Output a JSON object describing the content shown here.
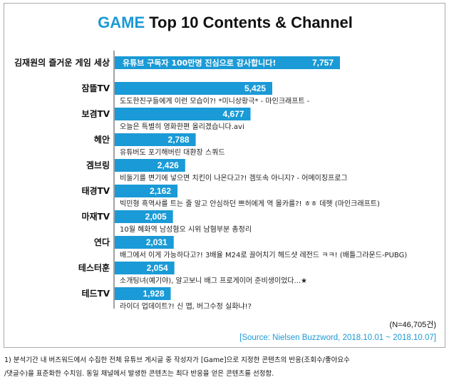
{
  "title": {
    "highlight": "GAME",
    "rest": " Top 10 Contents & Channel"
  },
  "colors": {
    "bar": "#1a9ad6",
    "accent": "#1a9ad6",
    "axis": "#444444"
  },
  "chart_data": {
    "type": "bar",
    "orientation": "horizontal",
    "categories": [
      "김재원의 즐거운 게임 세상",
      "잠뜰TV",
      "보겸TV",
      "헤안",
      "겜브링",
      "태경TV",
      "마재TV",
      "연다",
      "테스터훈",
      "테드TV"
    ],
    "values": [
      7757,
      5425,
      4677,
      2788,
      2426,
      2162,
      2005,
      2031,
      2054,
      1928
    ],
    "value_labels": [
      "7,757",
      "5,425",
      "4,677",
      "2,788",
      "2,426",
      "2,162",
      "2,005",
      "2,031",
      "2,054",
      "1,928"
    ],
    "contents": [
      "유튜브 구독자 100만명 진심으로 감사합니다!",
      "도도한친구들에게 이런 모습이?! *미니상황극* - 마인크래프트 -",
      "오늘은 특별히 영화한편 올리겠습니다.avi",
      "유튜버도 포기해버린 대환장 스쿼드",
      "비둘기를 변기에 넣으면 치킨이 나온다고?! 겜또속 아니지? - 어메이징프로그",
      "빅민형 흑역사를 트는 줄 알고 안심하던 쁘허에게 역 몰카를?! ㅎㅎ 데헷 (마인크래프트)",
      "10월 혜화역 남성혐오 시위 남혐부분 총정리",
      "배그에서 이게 가능하다고?! 3배율 M24로 끌어치기 헤드샷 레전드 ㅋㅋ! (배틀그라운드-PUBG)",
      "소개팅녀(예기야), 알고보니 배그 프로게이머 준비생이었다...★",
      "라이더 업데이트?! 신 맵, 버그수정 실화냐!?"
    ],
    "xlim": [
      0,
      7757
    ]
  },
  "notes": {
    "n": "(N=46,705건)",
    "source": "[Source: Nielsen Buzzword, 2018.10.01 ~ 2018.10.07]"
  },
  "footnote": {
    "line1": "1)  분석기간 내 버즈워드에서 수집한 전체 유튜브 게시글 중 작성자가 [Game]으로 지정한 콘텐츠의 반응(조회수/좋아요수",
    "line2": "/댓글수)을 표준화한 수치임. 동일 채널에서 발생한 콘텐츠는 최다 반응을 얻은 콘텐츠를 선정함."
  }
}
